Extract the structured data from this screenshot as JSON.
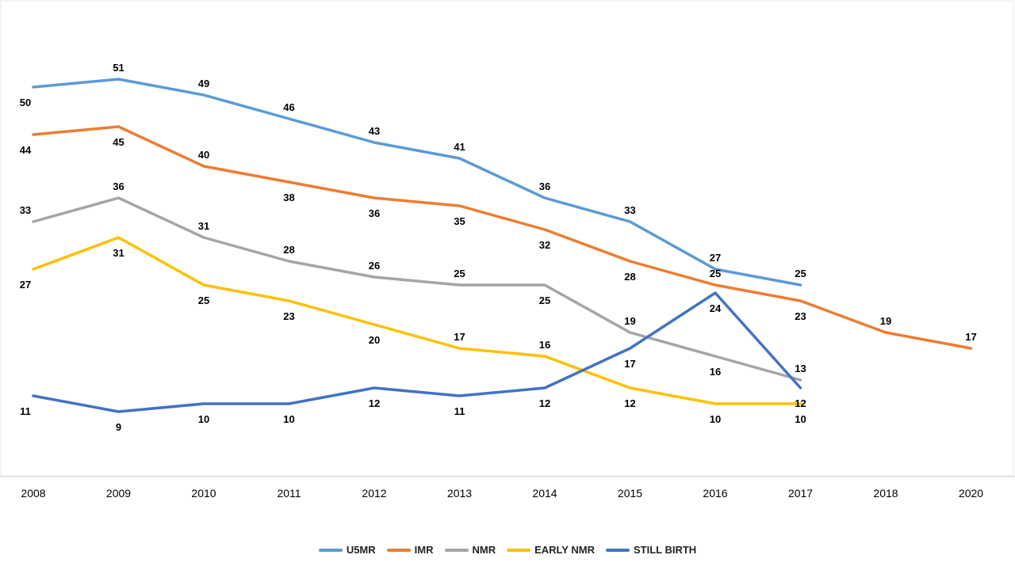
{
  "chart_data": {
    "type": "line",
    "x": [
      "2008",
      "2009",
      "2010",
      "2011",
      "2012",
      "2013",
      "2014",
      "2015",
      "2016",
      "2017",
      "2018",
      "2020"
    ],
    "ylim": [
      0,
      60
    ],
    "grid": false,
    "legend_position": "bottom",
    "series": [
      {
        "name": "U5MR",
        "color": "#5B9BD5",
        "values": [
          50,
          51,
          49,
          46,
          43,
          41,
          36,
          33,
          27,
          25,
          null,
          null
        ]
      },
      {
        "name": "IMR",
        "color": "#ED7D31",
        "values": [
          44,
          45,
          40,
          38,
          36,
          35,
          32,
          28,
          25,
          23,
          19,
          17
        ]
      },
      {
        "name": "NMR",
        "color": "#A5A5A5",
        "values": [
          33,
          36,
          31,
          28,
          26,
          25,
          25,
          19,
          16,
          13,
          null,
          null
        ]
      },
      {
        "name": "EARLY NMR",
        "color": "#FFC000",
        "values": [
          27,
          31,
          25,
          23,
          20,
          17,
          16,
          12,
          10,
          10,
          null,
          null
        ]
      },
      {
        "name": "STILL BIRTH",
        "color": "#4472C4",
        "values": [
          11,
          9,
          10,
          10,
          12,
          11,
          12,
          17,
          24,
          12,
          null,
          null
        ]
      }
    ]
  }
}
